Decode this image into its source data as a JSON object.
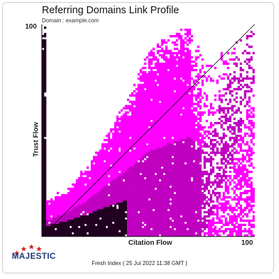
{
  "chart_data": {
    "type": "heatmap",
    "title": "Referring Domains Link Profile",
    "subtitle": "Domain : example.com",
    "xlabel": "Citation Flow",
    "ylabel": "Trust Flow",
    "xlim": [
      0,
      100
    ],
    "ylim": [
      0,
      100
    ],
    "x_tick_labels": [
      "100"
    ],
    "y_tick_labels": [
      "100"
    ],
    "reference_line": {
      "from": [
        0,
        0
      ],
      "to": [
        100,
        100
      ]
    },
    "colors": {
      "low": "#ff00ff",
      "mid": "#c000c0",
      "high": "#200020",
      "line": "#000000"
    },
    "density_profile": [
      {
        "citation_flow": 2,
        "trust_flow_max": 18,
        "trust_flow_median": 3
      },
      {
        "citation_flow": 10,
        "trust_flow_max": 22,
        "trust_flow_median": 5
      },
      {
        "citation_flow": 20,
        "trust_flow_max": 32,
        "trust_flow_median": 8
      },
      {
        "citation_flow": 30,
        "trust_flow_max": 48,
        "trust_flow_median": 12
      },
      {
        "citation_flow": 40,
        "trust_flow_max": 65,
        "trust_flow_median": 15
      },
      {
        "citation_flow": 50,
        "trust_flow_max": 88,
        "trust_flow_median": 18
      },
      {
        "citation_flow": 60,
        "trust_flow_max": 95,
        "trust_flow_median": 20
      },
      {
        "citation_flow": 70,
        "trust_flow_max": 100,
        "trust_flow_median": 22
      },
      {
        "citation_flow": 75,
        "trust_flow_max": 85,
        "trust_flow_median": 20
      },
      {
        "citation_flow": 80,
        "trust_flow_max": 80,
        "trust_flow_median": 30
      },
      {
        "citation_flow": 90,
        "trust_flow_max": 95,
        "trust_flow_median": 60
      },
      {
        "citation_flow": 100,
        "trust_flow_max": 100,
        "trust_flow_median": 100
      }
    ]
  },
  "brand": {
    "name": "MAJESTIC"
  },
  "footer": {
    "text": "Fresh Index ( 25 Jul 2022 11:38 GMT )"
  }
}
